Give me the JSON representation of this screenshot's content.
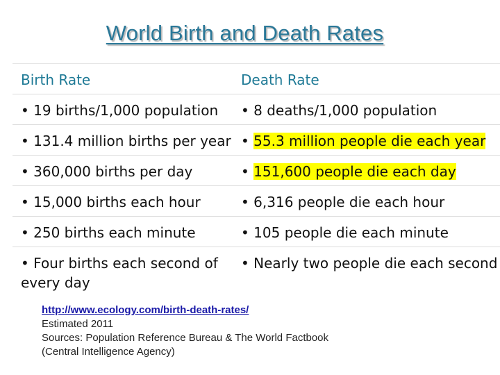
{
  "title": "World Birth and Death Rates",
  "table": {
    "headers": {
      "left": "Birth Rate",
      "right": "Death Rate"
    },
    "rows": [
      {
        "left": "• 19 births/1,000 population",
        "right_prefix": "• ",
        "right_text": "8 deaths/1,000 population",
        "right_highlight": false
      },
      {
        "left": "• 131.4 million births per year",
        "right_prefix": "• ",
        "right_text": "55.3 million people die each year",
        "right_highlight": true
      },
      {
        "left": "• 360,000 births per day",
        "right_prefix": "• ",
        "right_text": "151,600 people die each day",
        "right_highlight": true
      },
      {
        "left": "• 15,000 births each hour",
        "right_prefix": "• ",
        "right_text": "6,316 people die each hour",
        "right_highlight": false
      },
      {
        "left": "• 250 births each minute",
        "right_prefix": "• ",
        "right_text": "105 people die each minute",
        "right_highlight": false
      },
      {
        "left": "• Four births each second of every day",
        "right_prefix": "• ",
        "right_text": "Nearly two people die each second",
        "right_highlight": false
      }
    ],
    "highlight_color": "#ffff00"
  },
  "sources": {
    "link": "http://www.ecology.com/birth-death-rates/",
    "estimated": "Estimated 2011",
    "line1": "Sources: Population Reference Bureau & The World Factbook",
    "line2": "(Central Intelligence Agency)"
  },
  "colors": {
    "title": "#2a7898",
    "header_text": "#1f7a96",
    "link": "#1a1aa8"
  }
}
